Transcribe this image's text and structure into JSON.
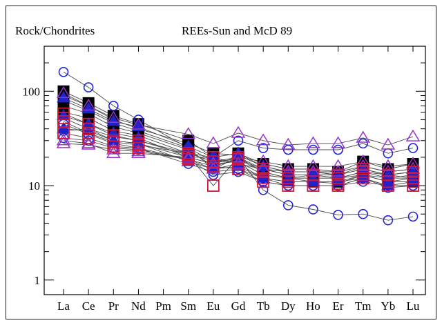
{
  "chart_data": {
    "type": "line",
    "title": "REEs-Sun and McD 89",
    "ylabel": "Rock/Chondrites",
    "xlabel": "",
    "categories": [
      "La",
      "Ce",
      "Pr",
      "Nd",
      "Pm",
      "Sm",
      "Eu",
      "Gd",
      "Tb",
      "Dy",
      "Ho",
      "Er",
      "Tm",
      "Yb",
      "Lu"
    ],
    "yscale": "log",
    "ylim": [
      0.7,
      300
    ],
    "yticks": [
      1,
      10,
      100
    ],
    "ytick_labels": [
      "1",
      "10",
      "100"
    ],
    "grid": false,
    "legend": "none",
    "colors": {
      "line": "#4a4a4a",
      "black_square": "#000000",
      "blue_circle": "#2222dd",
      "blue_triangle": "#2222cc",
      "purple_triangle": "#9933cc",
      "red_square": "#d3173a"
    },
    "series": [
      {
        "marker": "circle",
        "color": "blue",
        "values": [
          160,
          110,
          70,
          50,
          null,
          25,
          15,
          20,
          9,
          6.2,
          5.6,
          4.9,
          5.0,
          4.3,
          4.7
        ]
      },
      {
        "marker": "circle",
        "color": "blue",
        "values": [
          45,
          35,
          28,
          25,
          null,
          17,
          14,
          15,
          12,
          10,
          10,
          10,
          12,
          9.5,
          10
        ]
      },
      {
        "marker": "circle",
        "color": "blue",
        "values": [
          32,
          30,
          25,
          24,
          null,
          19,
          13,
          14,
          11,
          10,
          10,
          10,
          11,
          10,
          10
        ]
      },
      {
        "marker": "circle",
        "color": "blue",
        "values": [
          38,
          40,
          33,
          30,
          null,
          22,
          20,
          30,
          25,
          24,
          24,
          24,
          28,
          22,
          25
        ]
      },
      {
        "marker": "square",
        "color": "black",
        "values": [
          100,
          75,
          55,
          45,
          null,
          30,
          20,
          22,
          17,
          15,
          15,
          14,
          18,
          15,
          17
        ]
      },
      {
        "marker": "square",
        "color": "black",
        "values": [
          90,
          70,
          50,
          40,
          null,
          28,
          22,
          21,
          16,
          14,
          14,
          13,
          16,
          14,
          15
        ]
      },
      {
        "marker": "square",
        "color": "black",
        "values": [
          80,
          62,
          46,
          38,
          null,
          25,
          18,
          20,
          15,
          13,
          13,
          12,
          14,
          12,
          13
        ]
      },
      {
        "marker": "square",
        "color": "black",
        "values": [
          70,
          58,
          42,
          36,
          null,
          24,
          16,
          19,
          14,
          12,
          12,
          12,
          13,
          12,
          12
        ]
      },
      {
        "marker": "square",
        "color": "black",
        "values": [
          60,
          52,
          38,
          34,
          null,
          22,
          18,
          18,
          13,
          12,
          11,
          11,
          13,
          11,
          11
        ]
      },
      {
        "marker": "triangle",
        "color": "blue",
        "values": [
          85,
          65,
          48,
          42,
          null,
          26,
          20,
          22,
          16,
          14,
          14,
          13,
          15,
          13,
          14
        ]
      },
      {
        "marker": "triangle",
        "color": "blue",
        "values": [
          55,
          45,
          36,
          32,
          null,
          20,
          17,
          18,
          13,
          12,
          12,
          12,
          13,
          11,
          12
        ]
      },
      {
        "marker": "triangle",
        "color": "blue",
        "values": [
          40,
          38,
          30,
          28,
          null,
          18,
          15,
          16,
          12,
          11,
          11,
          11,
          12,
          10,
          11
        ]
      },
      {
        "marker": "triangle",
        "color": "purple",
        "values": [
          95,
          70,
          52,
          44,
          null,
          35,
          28,
          36,
          30,
          27,
          28,
          28,
          32,
          27,
          33
        ]
      },
      {
        "marker": "triangle",
        "color": "purple",
        "values": [
          30,
          28,
          22,
          22,
          null,
          20,
          17,
          20,
          18,
          16,
          16,
          16,
          18,
          16,
          17
        ]
      },
      {
        "marker": "triangle",
        "color": "purple",
        "values": [
          28,
          27,
          24,
          23,
          null,
          19,
          15,
          17,
          15,
          14,
          14,
          14,
          16,
          14,
          15
        ]
      },
      {
        "marker": "square",
        "color": "red",
        "values": [
          58,
          45,
          34,
          30,
          null,
          21,
          10,
          20,
          14,
          12,
          13,
          12,
          14,
          13,
          12
        ]
      },
      {
        "marker": "square",
        "color": "red",
        "values": [
          52,
          40,
          30,
          28,
          null,
          20,
          20,
          17,
          12,
          11,
          11,
          10.5,
          13,
          11,
          11
        ]
      },
      {
        "marker": "square",
        "color": "red",
        "values": [
          36,
          32,
          26,
          25,
          null,
          19,
          16,
          15,
          11,
          10,
          10,
          10,
          12,
          10,
          10
        ]
      },
      {
        "marker": "square",
        "color": "red",
        "values": [
          48,
          36,
          29,
          27,
          null,
          22,
          18,
          19,
          15,
          13,
          13,
          13,
          15,
          13,
          14
        ]
      }
    ]
  }
}
